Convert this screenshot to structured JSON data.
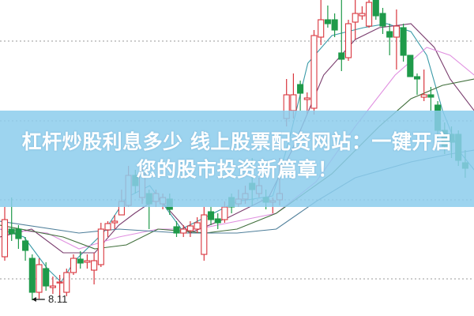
{
  "title": {
    "line1": "杠杆炒股利息多少 线上股票配资网站：一键开启",
    "line2": "您的股市投资新篇章！"
  },
  "colors": {
    "up": "#d9363e",
    "down": "#1f9a4a",
    "banner": "#8ccdec",
    "ma_fast": "#3a9aa8",
    "ma_10": "#7a3d6e",
    "ma_20": "#e08fe0",
    "ma_30": "#3f6e3a",
    "ma_60": "#4f7f9a"
  },
  "chart_data": {
    "type": "candlestick",
    "x_unit": "candle index",
    "ylim": [
      8.0,
      11.91
    ],
    "grid": "horizontal dotted",
    "gridlines": [
      11.39,
      10.38,
      9.38,
      8.38
    ],
    "annotation": {
      "label": "8.11",
      "candle": 4,
      "price": 8.11
    },
    "candles": [
      [
        8.66,
        9.13,
        9.29,
        8.61
      ],
      [
        9.01,
        8.95,
        9.41,
        8.86
      ],
      [
        9.01,
        8.89,
        9.06,
        8.76
      ],
      [
        8.86,
        8.74,
        8.91,
        8.61
      ],
      [
        8.64,
        8.21,
        8.69,
        8.11
      ],
      [
        8.21,
        8.56,
        8.64,
        8.13
      ],
      [
        8.51,
        8.29,
        8.59,
        8.23
      ],
      [
        8.27,
        8.29,
        8.41,
        8.19
      ],
      [
        8.33,
        8.34,
        8.43,
        8.13
      ],
      [
        8.21,
        8.46,
        8.51,
        8.16
      ],
      [
        8.46,
        8.64,
        8.69,
        8.43
      ],
      [
        8.63,
        8.58,
        8.73,
        8.51
      ],
      [
        8.59,
        8.61,
        8.69,
        8.51
      ],
      [
        8.49,
        8.61,
        8.71,
        8.31
      ],
      [
        8.56,
        9.01,
        9.09,
        8.53
      ],
      [
        9.0,
        9.08,
        9.11,
        8.91
      ],
      [
        9.09,
        9.11,
        9.19,
        9.01
      ],
      [
        9.19,
        9.36,
        9.51,
        9.19
      ],
      [
        9.31,
        9.69,
        9.81,
        9.29
      ],
      [
        9.69,
        9.56,
        9.76,
        9.46
      ],
      [
        9.41,
        9.71,
        9.79,
        9.33
      ],
      [
        9.46,
        9.33,
        9.51,
        9.01
      ],
      [
        9.36,
        9.46,
        9.51,
        9.29
      ],
      [
        9.33,
        9.41,
        9.46,
        9.26
      ],
      [
        9.39,
        9.26,
        9.46,
        9.19
      ],
      [
        9.04,
        8.96,
        9.11,
        8.91
      ],
      [
        8.96,
        9.01,
        9.06,
        8.91
      ],
      [
        8.99,
        9.05,
        9.11,
        8.91
      ],
      [
        9.01,
        9.09,
        9.16,
        8.96
      ],
      [
        8.69,
        9.19,
        9.29,
        8.61
      ],
      [
        9.23,
        9.13,
        9.29,
        9.06
      ],
      [
        9.14,
        9.09,
        9.21,
        9.01
      ],
      [
        9.13,
        9.29,
        9.36,
        9.09
      ],
      [
        9.41,
        9.29,
        9.46,
        9.21
      ],
      [
        9.33,
        9.39,
        9.51,
        9.29
      ],
      [
        9.39,
        9.46,
        9.56,
        9.33
      ],
      [
        9.59,
        9.51,
        9.91,
        9.31
      ],
      [
        9.46,
        9.56,
        9.66,
        9.41
      ],
      [
        9.41,
        9.35,
        9.51,
        9.26
      ],
      [
        9.35,
        9.37,
        9.41,
        9.21
      ],
      [
        9.38,
        9.46,
        9.91,
        9.31
      ],
      [
        10.41,
        10.71,
        10.91,
        10.31
      ],
      [
        10.51,
        10.71,
        10.98,
        10.41
      ],
      [
        10.84,
        10.73,
        10.89,
        10.51
      ],
      [
        10.65,
        10.67,
        10.74,
        10.46
      ],
      [
        10.54,
        11.46,
        11.53,
        10.46
      ],
      [
        11.44,
        11.66,
        11.91,
        11.34
      ],
      [
        11.66,
        11.61,
        11.84,
        11.56
      ],
      [
        11.66,
        11.53,
        11.74,
        11.44
      ],
      [
        11.24,
        11.16,
        11.91,
        11.01
      ],
      [
        11.18,
        11.61,
        11.66,
        11.14
      ],
      [
        11.63,
        11.74,
        11.91,
        11.41
      ],
      [
        11.71,
        11.74,
        11.83,
        11.66
      ],
      [
        11.58,
        11.88,
        11.91,
        11.56
      ],
      [
        11.91,
        11.71,
        11.91,
        11.66
      ],
      [
        11.74,
        11.58,
        11.81,
        11.48
      ],
      [
        11.51,
        11.44,
        11.61,
        11.21
      ],
      [
        11.44,
        11.58,
        11.79,
        11.03
      ],
      [
        11.56,
        11.21,
        11.61,
        11.13
      ],
      [
        11.21,
        10.94,
        11.21,
        10.94
      ],
      [
        10.94,
        10.91,
        10.98,
        10.71
      ],
      [
        10.68,
        10.71,
        11.03,
        10.63
      ],
      [
        10.71,
        10.68,
        10.81,
        10.51
      ],
      [
        10.58,
        10.26,
        10.63,
        10.16
      ],
      [
        10.26,
        10.06,
        10.36,
        9.96
      ],
      [
        10.21,
        10.11,
        10.31,
        9.91
      ],
      [
        10.21,
        9.88,
        10.26,
        9.81
      ],
      [
        9.85,
        9.78,
        10.01,
        9.66
      ]
    ],
    "candle_format": [
      "open",
      "close",
      "high",
      "low"
    ],
    "moving_averages": [
      {
        "color_key": "ma_fast",
        "points": [
          [
            -0.7,
            9.01
          ],
          [
            2.8,
            8.91
          ],
          [
            6.2,
            8.51
          ],
          [
            8.2,
            8.34
          ],
          [
            10.2,
            8.61
          ],
          [
            14.3,
            8.96
          ],
          [
            17.7,
            9.41
          ],
          [
            21.1,
            9.56
          ],
          [
            25.7,
            9.01
          ],
          [
            29.2,
            9.16
          ],
          [
            33.8,
            9.36
          ],
          [
            39,
            9.43
          ],
          [
            41.3,
            10.11
          ],
          [
            44.1,
            11.11
          ],
          [
            47.6,
            11.46
          ],
          [
            52.2,
            11.56
          ],
          [
            55.6,
            11.61
          ],
          [
            59.1,
            11.51
          ],
          [
            61.4,
            11.21
          ],
          [
            63.7,
            10.51
          ],
          [
            66,
            10.01
          ],
          [
            68.3,
            9.76
          ]
        ]
      },
      {
        "color_key": "ma_10",
        "points": [
          [
            -0.7,
            8.91
          ],
          [
            3.9,
            9.01
          ],
          [
            8.5,
            8.71
          ],
          [
            13.1,
            8.71
          ],
          [
            16.6,
            9.06
          ],
          [
            18.9,
            9.21
          ],
          [
            22.3,
            9.41
          ],
          [
            26.9,
            8.96
          ],
          [
            32.6,
            9.16
          ],
          [
            38.4,
            9.41
          ],
          [
            41.8,
            10.01
          ],
          [
            46.4,
            10.96
          ],
          [
            51,
            11.41
          ],
          [
            54.5,
            11.56
          ],
          [
            59.1,
            11.61
          ],
          [
            62.5,
            11.31
          ],
          [
            64.8,
            10.91
          ],
          [
            68.3,
            10.51
          ]
        ]
      },
      {
        "color_key": "ma_20",
        "points": [
          [
            -0.7,
            9.01
          ],
          [
            6.2,
            8.96
          ],
          [
            10.8,
            8.76
          ],
          [
            16.6,
            8.91
          ],
          [
            22.3,
            9.01
          ],
          [
            28,
            9.01
          ],
          [
            33.8,
            9.11
          ],
          [
            39.5,
            9.21
          ],
          [
            45.3,
            9.61
          ],
          [
            51,
            10.31
          ],
          [
            56.8,
            10.96
          ],
          [
            61.4,
            11.31
          ],
          [
            64.8,
            11.21
          ],
          [
            68.3,
            10.96
          ]
        ]
      },
      {
        "color_key": "ma_30",
        "points": [
          [
            -0.7,
            9.06
          ],
          [
            8.5,
            8.91
          ],
          [
            13.1,
            8.76
          ],
          [
            17.7,
            8.81
          ],
          [
            22.3,
            9.01
          ],
          [
            29.2,
            8.96
          ],
          [
            33.8,
            9.01
          ],
          [
            39.5,
            9.21
          ],
          [
            47.6,
            9.71
          ],
          [
            54.5,
            10.31
          ],
          [
            59.1,
            10.66
          ],
          [
            63.7,
            10.83
          ],
          [
            68.3,
            10.91
          ]
        ]
      },
      {
        "color_key": "ma_60",
        "points": [
          [
            -0.7,
            9.11
          ],
          [
            10.8,
            8.96
          ],
          [
            16.6,
            9.01
          ],
          [
            25.7,
            8.96
          ],
          [
            33.8,
            8.96
          ],
          [
            39.5,
            9.01
          ],
          [
            45.3,
            9.36
          ],
          [
            51,
            9.66
          ],
          [
            59.1,
            9.86
          ],
          [
            64.8,
            9.96
          ],
          [
            68.3,
            10.01
          ]
        ]
      }
    ]
  }
}
